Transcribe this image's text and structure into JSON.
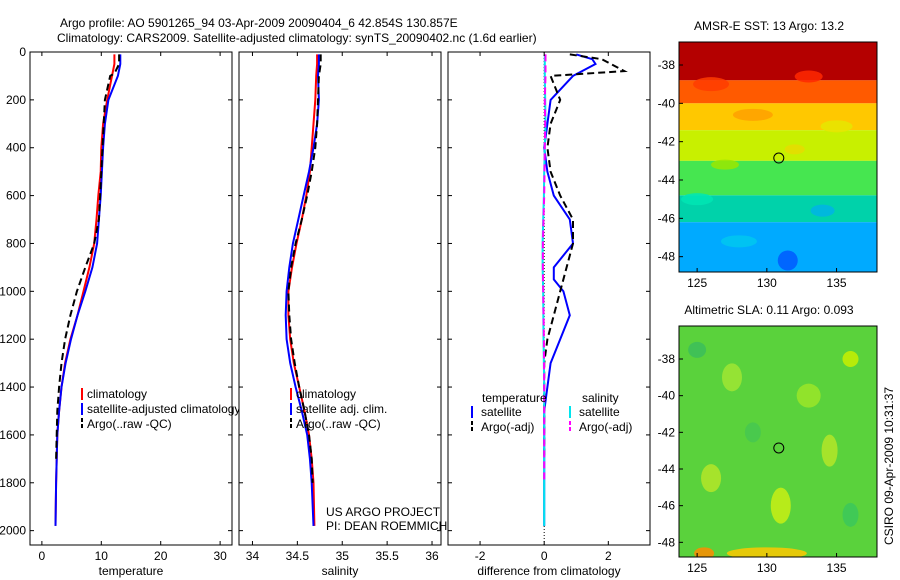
{
  "header": {
    "line1": "Argo profile: AO 5901265_94 03-Apr-2009 20090404_6 42.854S 130.857E",
    "line2": "Climatology: CARS2009. Satellite-adjusted climatology: synTS_20090402.nc (1.6d earlier)"
  },
  "side_stamp": "CSIRO 09-Apr-2009 10:31:37",
  "colors": {
    "red": "#ff0000",
    "blue": "#0000ff",
    "black": "#000000",
    "cyan": "#00e5ee",
    "magenta": "#ff00ff"
  },
  "chart_data": [
    {
      "id": "temperature",
      "type": "line",
      "xlabel": "temperature",
      "ylabel": "",
      "xlim": [
        -2,
        32
      ],
      "ylim": [
        2060,
        0
      ],
      "yaxis_reversed": true,
      "xticks": [
        0,
        10,
        20,
        30
      ],
      "yticks": [
        0,
        200,
        400,
        600,
        800,
        1000,
        1200,
        1400,
        1600,
        1800,
        2000
      ],
      "xtick_labels": [
        "0",
        "10",
        "20",
        "30"
      ],
      "ytick_labels": [
        "0",
        "200",
        "400",
        "600",
        "800",
        "1000",
        "1200",
        "1400",
        "1600",
        "1800",
        "2000"
      ],
      "legend": {
        "position": "lower-right",
        "entries": [
          "climatology",
          "satellite-adjusted climatology",
          "Argo(..raw -QC)"
        ]
      },
      "series": [
        {
          "name": "climatology",
          "color": "red",
          "dash": false,
          "x": [
            12.2,
            12.2,
            11.8,
            11.0,
            10.3,
            10.0,
            9.9,
            9.5,
            9.2,
            8.8,
            8.0,
            7.0,
            6.0,
            4.8,
            3.9,
            3.3,
            2.9,
            2.6,
            2.5,
            2.4,
            2.3
          ],
          "y": [
            10,
            50,
            100,
            200,
            300,
            400,
            500,
            600,
            700,
            800,
            900,
            1000,
            1100,
            1200,
            1300,
            1400,
            1500,
            1600,
            1700,
            1800,
            1980
          ]
        },
        {
          "name": "satellite-adjusted climatology",
          "color": "blue",
          "dash": false,
          "x": [
            13.2,
            13.2,
            12.8,
            11.2,
            10.6,
            10.3,
            10.1,
            9.9,
            9.6,
            9.3,
            8.5,
            7.3,
            6.0,
            4.9,
            4.0,
            3.3,
            2.9,
            2.6,
            2.5,
            2.4,
            2.3
          ],
          "y": [
            10,
            50,
            100,
            200,
            300,
            400,
            500,
            600,
            700,
            800,
            900,
            1000,
            1100,
            1200,
            1300,
            1400,
            1500,
            1600,
            1700,
            1800,
            1980
          ]
        },
        {
          "name": "Argo(..raw -QC)",
          "color": "black",
          "dash": true,
          "x": [
            13.0,
            13.0,
            12.2,
            11.5,
            10.6,
            10.4,
            10.2,
            10.0,
            9.8,
            9.6,
            8.8,
            7.3,
            5.9,
            4.8,
            3.9,
            3.3,
            2.9,
            2.6,
            2.5,
            2.4
          ],
          "y": [
            10,
            50,
            90,
            100,
            200,
            300,
            400,
            500,
            600,
            700,
            800,
            900,
            1000,
            1100,
            1200,
            1300,
            1400,
            1500,
            1600,
            1700
          ]
        }
      ]
    },
    {
      "id": "salinity",
      "type": "line",
      "xlabel": "salinity",
      "ylabel": "",
      "xlim": [
        33.85,
        36.1
      ],
      "ylim": [
        2060,
        0
      ],
      "yaxis_reversed": true,
      "xticks": [
        34,
        34.5,
        35,
        35.5,
        36
      ],
      "xtick_labels": [
        "34",
        "34.5",
        "35",
        "35.5",
        "36"
      ],
      "legend": {
        "position": "lower-right",
        "entries": [
          "climatology",
          "satellite adj. clim.",
          "Argo(..raw -QC)"
        ]
      },
      "annotation": [
        "US ARGO PROJECT",
        "PI: DEAN ROEMMICH"
      ],
      "series": [
        {
          "name": "climatology",
          "color": "red",
          "dash": false,
          "x": [
            34.72,
            34.72,
            34.71,
            34.7,
            34.68,
            34.66,
            34.64,
            34.6,
            34.55,
            34.49,
            34.44,
            34.4,
            34.4,
            34.42,
            34.46,
            34.52,
            34.58,
            34.63,
            34.66,
            34.68,
            34.69
          ],
          "y": [
            10,
            50,
            100,
            200,
            300,
            400,
            500,
            600,
            700,
            800,
            900,
            1000,
            1100,
            1200,
            1300,
            1400,
            1500,
            1600,
            1700,
            1800,
            1980
          ]
        },
        {
          "name": "satellite adj. clim.",
          "color": "blue",
          "dash": false,
          "x": [
            34.74,
            34.74,
            34.73,
            34.74,
            34.72,
            34.68,
            34.63,
            34.57,
            34.51,
            34.45,
            34.41,
            34.38,
            34.37,
            34.38,
            34.42,
            34.48,
            34.55,
            34.61,
            34.64,
            34.66,
            34.68
          ],
          "y": [
            10,
            50,
            100,
            200,
            300,
            400,
            500,
            600,
            700,
            800,
            900,
            1000,
            1100,
            1200,
            1300,
            1400,
            1500,
            1600,
            1700,
            1800,
            1980
          ]
        },
        {
          "name": "Argo(..raw -QC)",
          "color": "black",
          "dash": true,
          "x": [
            34.76,
            34.76,
            34.74,
            34.73,
            34.72,
            34.7,
            34.66,
            34.61,
            34.55,
            34.48,
            34.43,
            34.4,
            34.41,
            34.43,
            34.47,
            34.52,
            34.58,
            34.63,
            34.66,
            34.67
          ],
          "y": [
            10,
            50,
            100,
            200,
            300,
            400,
            500,
            600,
            700,
            800,
            900,
            1000,
            1100,
            1200,
            1300,
            1400,
            1500,
            1600,
            1700,
            1800
          ]
        }
      ]
    },
    {
      "id": "difference",
      "type": "line",
      "xlabel": "difference from climatology",
      "ylabel": "",
      "xlim": [
        -3,
        3.3
      ],
      "ylim": [
        2060,
        0
      ],
      "yaxis_reversed": true,
      "xticks": [
        -2,
        0,
        2
      ],
      "xtick_labels": [
        "-2",
        "0",
        "2"
      ],
      "legend": {
        "position": "lower-center",
        "groups": [
          {
            "title": "temperature",
            "entries": [
              "satellite",
              "Argo(-adj)"
            ]
          },
          {
            "title": "salinity",
            "entries": [
              "satellite",
              "Argo(-adj)"
            ]
          }
        ]
      },
      "series": [
        {
          "name": "temperature satellite",
          "color": "blue",
          "dash": false,
          "x": [
            1.0,
            1.5,
            1.6,
            0.9,
            0.2,
            0.1,
            0.0,
            0.1,
            0.3,
            0.8,
            0.9,
            0.3,
            0.3,
            0.6,
            0.8,
            0.5,
            0.2,
            0.1,
            0.0,
            0.0,
            0.0,
            0.0
          ],
          "y": [
            10,
            30,
            50,
            100,
            200,
            300,
            400,
            500,
            600,
            700,
            800,
            900,
            950,
            1000,
            1100,
            1200,
            1300,
            1400,
            1500,
            1600,
            1700,
            1980
          ]
        },
        {
          "name": "temperature Argo(-adj)",
          "color": "black",
          "dash": true,
          "x": [
            0.8,
            1.8,
            2.5,
            0.2,
            0.5,
            0.2,
            0.1,
            0.2,
            0.5,
            0.9,
            0.9,
            0.7,
            0.5,
            0.3,
            0.1,
            0.0,
            0.0,
            0.0,
            0.0,
            0.0
          ],
          "y": [
            10,
            30,
            80,
            100,
            200,
            300,
            400,
            500,
            600,
            700,
            800,
            900,
            1000,
            1100,
            1200,
            1300,
            1400,
            1500,
            1600,
            1700
          ]
        },
        {
          "name": "salinity satellite",
          "color": "cyan",
          "dash": false,
          "x": [
            0.02,
            0.02,
            0.03,
            0.04,
            0.02,
            0.0,
            -0.01,
            -0.03,
            -0.05,
            -0.05,
            -0.03,
            -0.02,
            0.0,
            0.0,
            0.0,
            0.0
          ],
          "y": [
            10,
            100,
            200,
            300,
            400,
            500,
            600,
            700,
            800,
            900,
            1000,
            1200,
            1400,
            1600,
            1800,
            1980
          ]
        },
        {
          "name": "salinity Argo(-adj)",
          "color": "magenta",
          "dash": true,
          "x": [
            0.04,
            0.04,
            0.02,
            0.03,
            0.02,
            0.01,
            0.0,
            -0.02,
            -0.04,
            -0.04,
            -0.03,
            -0.01,
            0.0,
            0.0,
            0.0
          ],
          "y": [
            10,
            100,
            200,
            300,
            400,
            500,
            600,
            700,
            800,
            900,
            1000,
            1200,
            1400,
            1600,
            1800
          ]
        }
      ]
    },
    {
      "id": "sst_map",
      "type": "heatmap",
      "title": "AMSR-E SST: 13 Argo: 13.2",
      "xlim": [
        123.7,
        137.9
      ],
      "ylim": [
        -48.8,
        -36.8
      ],
      "xticks": [
        125,
        130,
        135
      ],
      "yticks": [
        -38,
        -40,
        -42,
        -44,
        -46,
        -48
      ],
      "xtick_labels": [
        "125",
        "130",
        "135"
      ],
      "ytick_labels": [
        "-38",
        "-40",
        "-42",
        "-44",
        "-46",
        "-48"
      ],
      "marker": {
        "lon": 130.857,
        "lat": -42.854
      },
      "colormap": "jet",
      "colorbands": [
        {
          "lat_top": -36.8,
          "lat_bottom": -38.8,
          "color": "#b40000"
        },
        {
          "lat_top": -38.8,
          "lat_bottom": -40.0,
          "color": "#ff5a00"
        },
        {
          "lat_top": -40.0,
          "lat_bottom": -41.4,
          "color": "#ffc800"
        },
        {
          "lat_top": -41.4,
          "lat_bottom": -43.0,
          "color": "#c8f000"
        },
        {
          "lat_top": -43.0,
          "lat_bottom": -44.8,
          "color": "#46e650"
        },
        {
          "lat_top": -44.8,
          "lat_bottom": -46.2,
          "color": "#00d2aa"
        },
        {
          "lat_top": -46.2,
          "lat_bottom": -48.8,
          "color": "#00aaff"
        }
      ]
    },
    {
      "id": "sla_map",
      "type": "heatmap",
      "title": "Altimetric SLA: 0.11 Argo: 0.093",
      "xlim": [
        123.7,
        137.9
      ],
      "ylim": [
        -48.8,
        -36.2
      ],
      "xticks": [
        125,
        130,
        135
      ],
      "yticks": [
        -38,
        -40,
        -42,
        -44,
        -46,
        -48
      ],
      "xtick_labels": [
        "125",
        "130",
        "135"
      ],
      "ytick_labels": [
        "-38",
        "-40",
        "-42",
        "-44",
        "-46",
        "-48"
      ],
      "marker": {
        "lon": 130.857,
        "lat": -42.854
      },
      "colormap": "jet",
      "base_color": "#5ad23c"
    }
  ]
}
